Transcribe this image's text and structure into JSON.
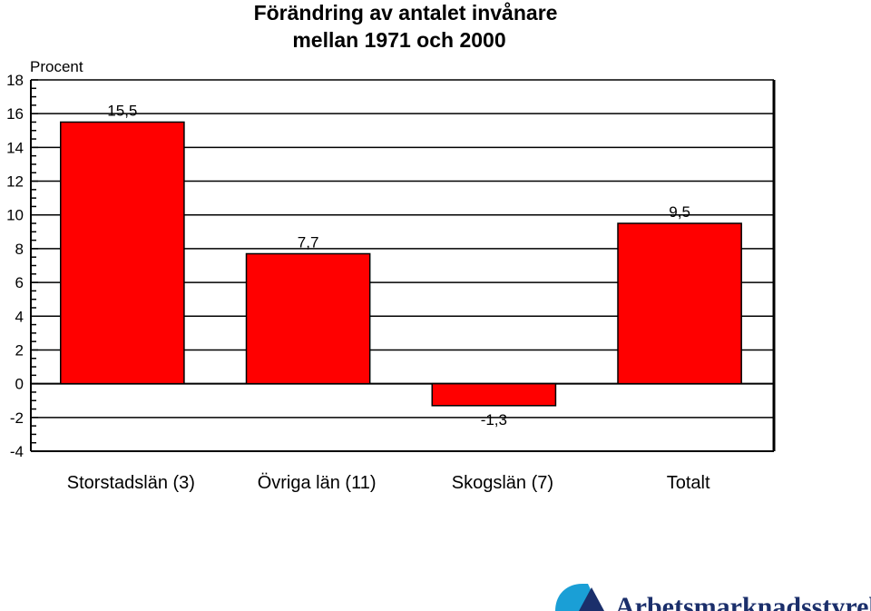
{
  "chart_data": {
    "type": "bar",
    "title_line1": "Förändring av antalet invånare",
    "title_line2": "mellan 1971 och 2000",
    "ylabel": "Procent",
    "categories": [
      "Storstadslän (3)",
      "Övriga län (11)",
      "Skogslän (7)",
      "Totalt"
    ],
    "values": [
      15.5,
      7.7,
      -1.3,
      9.5
    ],
    "value_labels": [
      "15,5",
      "7,7",
      "-1,3",
      "9,5"
    ],
    "ylim": [
      -4,
      18
    ],
    "yticks": [
      18,
      16,
      14,
      12,
      10,
      8,
      6,
      4,
      2,
      0,
      -2,
      -4
    ],
    "grid": true,
    "bar_color": "#ff0000"
  },
  "logo": {
    "text": "Arbetsmarknadsstyrelsen",
    "color": "#1b2f6b",
    "accent": "#1a9fd6"
  }
}
